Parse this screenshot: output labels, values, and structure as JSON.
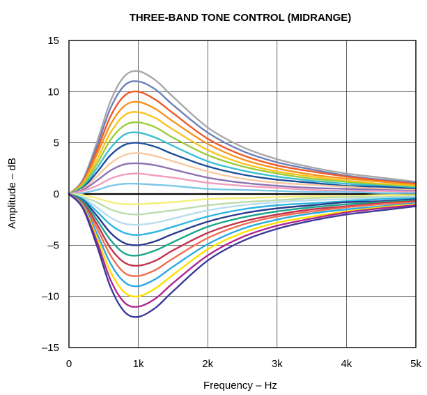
{
  "chart_data": {
    "type": "line",
    "title": "THREE-BAND TONE CONTROL (MIDRANGE)",
    "xlabel": "Frequency – Hz",
    "ylabel": "Amplitude – dB",
    "xlim": [
      0,
      5000
    ],
    "ylim": [
      -15,
      15
    ],
    "x_ticks": [
      {
        "value": 0,
        "label": "0"
      },
      {
        "value": 1000,
        "label": "1k"
      },
      {
        "value": 2000,
        "label": "2k"
      },
      {
        "value": 3000,
        "label": "3k"
      },
      {
        "value": 4000,
        "label": "4k"
      },
      {
        "value": 5000,
        "label": "5k"
      }
    ],
    "y_ticks": [
      {
        "value": 15,
        "label": "15"
      },
      {
        "value": 10,
        "label": "10"
      },
      {
        "value": 5,
        "label": "5"
      },
      {
        "value": 0,
        "label": "0"
      },
      {
        "value": -5,
        "label": "–5"
      },
      {
        "value": -10,
        "label": "–10"
      },
      {
        "value": -15,
        "label": "–15"
      }
    ],
    "grid": true,
    "x": [
      0,
      200,
      400,
      600,
      800,
      1000,
      1250,
      1500,
      2000,
      2500,
      3000,
      3500,
      4000,
      4500,
      5000
    ],
    "series": [
      {
        "color": "#a8a8a8",
        "values": [
          0,
          1.4,
          5.0,
          9.1,
          11.5,
          12.0,
          11.1,
          9.5,
          6.5,
          4.6,
          3.4,
          2.6,
          2.0,
          1.6,
          1.2
        ]
      },
      {
        "color": "#7080b8",
        "values": [
          0,
          1.3,
          4.6,
          8.4,
          10.6,
          11.0,
          10.2,
          8.7,
          6.0,
          4.2,
          3.1,
          2.4,
          1.8,
          1.4,
          1.1
        ]
      },
      {
        "color": "#f05a28",
        "values": [
          0,
          1.2,
          4.2,
          7.6,
          9.6,
          10.0,
          9.2,
          7.9,
          5.4,
          3.8,
          2.8,
          2.2,
          1.7,
          1.3,
          1.0
        ]
      },
      {
        "color": "#f7941d",
        "values": [
          0,
          1.1,
          3.8,
          6.8,
          8.6,
          9.0,
          8.3,
          7.1,
          4.9,
          3.4,
          2.5,
          1.9,
          1.5,
          1.2,
          0.9
        ]
      },
      {
        "color": "#f9c41e",
        "values": [
          0,
          1.0,
          3.3,
          6.0,
          7.7,
          8.0,
          7.4,
          6.3,
          4.3,
          3.0,
          2.2,
          1.7,
          1.3,
          1.0,
          0.8
        ]
      },
      {
        "color": "#9ccb3b",
        "values": [
          0,
          0.9,
          2.9,
          5.3,
          6.7,
          7.0,
          6.5,
          5.5,
          3.8,
          2.7,
          2.0,
          1.5,
          1.2,
          0.9,
          0.7
        ]
      },
      {
        "color": "#3bbfd0",
        "values": [
          0,
          0.7,
          2.5,
          4.5,
          5.8,
          6.0,
          5.5,
          4.7,
          3.2,
          2.3,
          1.7,
          1.3,
          1.0,
          0.8,
          0.6
        ]
      },
      {
        "color": "#1e4f9a",
        "values": [
          0,
          0.6,
          2.1,
          3.8,
          4.8,
          5.0,
          4.6,
          3.9,
          2.7,
          1.9,
          1.4,
          1.1,
          0.8,
          0.7,
          0.5
        ]
      },
      {
        "color": "#f8c8a0",
        "values": [
          0,
          0.5,
          1.7,
          3.0,
          3.8,
          4.0,
          3.7,
          3.2,
          2.2,
          1.5,
          1.1,
          0.9,
          0.7,
          0.5,
          0.4
        ]
      },
      {
        "color": "#8d72b3",
        "values": [
          0,
          0.4,
          1.3,
          2.3,
          2.9,
          3.0,
          2.8,
          2.4,
          1.6,
          1.1,
          0.8,
          0.6,
          0.5,
          0.4,
          0.3
        ]
      },
      {
        "color": "#f29bbf",
        "values": [
          0,
          0.3,
          0.8,
          1.5,
          1.9,
          2.0,
          1.8,
          1.6,
          1.1,
          0.8,
          0.6,
          0.4,
          0.3,
          0.3,
          0.2
        ]
      },
      {
        "color": "#7ac7e8",
        "values": [
          0,
          0.1,
          0.4,
          0.8,
          1.0,
          1.0,
          0.9,
          0.8,
          0.5,
          0.4,
          0.3,
          0.2,
          0.2,
          0.1,
          0.1
        ]
      },
      {
        "color": "#f5ef78",
        "values": [
          0,
          -0.1,
          -0.4,
          -0.8,
          -1.0,
          -1.0,
          -0.9,
          -0.8,
          -0.5,
          -0.4,
          -0.3,
          -0.2,
          -0.2,
          -0.1,
          -0.1
        ]
      },
      {
        "color": "#bcdcab",
        "values": [
          0,
          -0.3,
          -0.8,
          -1.5,
          -1.9,
          -2.0,
          -1.8,
          -1.6,
          -1.1,
          -0.8,
          -0.6,
          -0.4,
          -0.3,
          -0.3,
          -0.2
        ]
      },
      {
        "color": "#b8dcee",
        "values": [
          0,
          -0.4,
          -1.3,
          -2.3,
          -2.9,
          -3.0,
          -2.8,
          -2.4,
          -1.6,
          -1.1,
          -0.8,
          -0.6,
          -0.5,
          -0.4,
          -0.3
        ]
      },
      {
        "color": "#2db4e2",
        "values": [
          0,
          -0.5,
          -1.7,
          -3.0,
          -3.8,
          -4.0,
          -3.7,
          -3.2,
          -2.2,
          -1.5,
          -1.1,
          -0.9,
          -0.7,
          -0.5,
          -0.4
        ]
      },
      {
        "color": "#2b3a8c",
        "values": [
          0,
          -0.6,
          -2.1,
          -3.8,
          -4.8,
          -5.0,
          -4.6,
          -3.9,
          -2.7,
          -1.9,
          -1.4,
          -1.1,
          -0.8,
          -0.7,
          -0.5
        ]
      },
      {
        "color": "#1aa58a",
        "values": [
          0,
          -0.7,
          -2.5,
          -4.5,
          -5.8,
          -6.0,
          -5.5,
          -4.7,
          -3.2,
          -2.3,
          -1.7,
          -1.3,
          -1.0,
          -0.8,
          -0.6
        ]
      },
      {
        "color": "#c0334d",
        "values": [
          0,
          -0.9,
          -2.9,
          -5.3,
          -6.7,
          -7.0,
          -6.5,
          -5.5,
          -3.8,
          -2.7,
          -2.0,
          -1.5,
          -1.2,
          -0.9,
          -0.7
        ]
      },
      {
        "color": "#f26c4f",
        "values": [
          0,
          -1.0,
          -3.3,
          -6.0,
          -7.7,
          -8.0,
          -7.4,
          -6.3,
          -4.3,
          -3.0,
          -2.2,
          -1.7,
          -1.3,
          -1.0,
          -0.8
        ]
      },
      {
        "color": "#29a9e1",
        "values": [
          0,
          -1.1,
          -3.8,
          -6.8,
          -8.6,
          -9.0,
          -8.3,
          -7.1,
          -4.9,
          -3.4,
          -2.5,
          -1.9,
          -1.5,
          -1.2,
          -0.9
        ]
      },
      {
        "color": "#ffe000",
        "values": [
          0,
          -1.2,
          -4.2,
          -7.6,
          -9.6,
          -10.0,
          -9.2,
          -7.9,
          -5.4,
          -3.8,
          -2.8,
          -2.2,
          -1.7,
          -1.3,
          -1.0
        ]
      },
      {
        "color": "#b0278f",
        "values": [
          0,
          -1.3,
          -4.6,
          -8.4,
          -10.6,
          -11.0,
          -10.2,
          -8.7,
          -6.0,
          -4.2,
          -3.1,
          -2.4,
          -1.8,
          -1.4,
          -1.1
        ]
      },
      {
        "color": "#3c3a9a",
        "values": [
          0,
          -1.4,
          -5.0,
          -9.1,
          -11.5,
          -12.0,
          -11.1,
          -9.5,
          -6.5,
          -4.6,
          -3.4,
          -2.6,
          -2.0,
          -1.6,
          -1.2
        ]
      }
    ]
  }
}
